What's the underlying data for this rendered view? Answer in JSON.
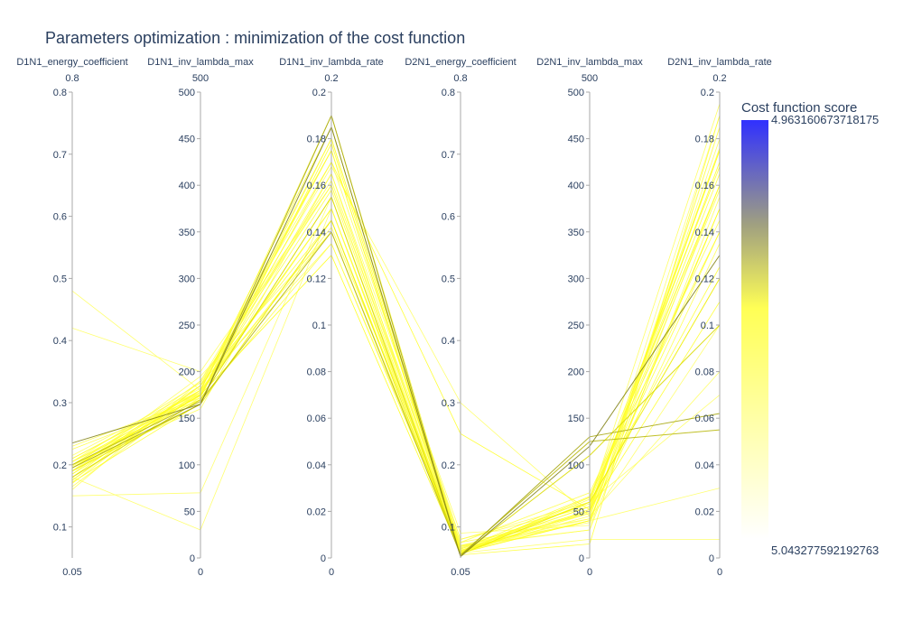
{
  "title": "Parameters optimization : minimization of the cost function",
  "chart_data": {
    "type": "parallel-coordinates",
    "title": "Parameters optimization : minimization of the cost function",
    "dimensions": [
      {
        "label": "D1N1_energy_coefficient",
        "range": [
          0.05,
          0.8
        ],
        "min_label": "0.05",
        "max_label": "0.8",
        "ticks": [
          {
            "v": 0.1,
            "t": "0.1"
          },
          {
            "v": 0.2,
            "t": "0.2"
          },
          {
            "v": 0.3,
            "t": "0.3"
          },
          {
            "v": 0.4,
            "t": "0.4"
          },
          {
            "v": 0.5,
            "t": "0.5"
          },
          {
            "v": 0.6,
            "t": "0.6"
          },
          {
            "v": 0.7,
            "t": "0.7"
          },
          {
            "v": 0.8,
            "t": "0.8"
          }
        ]
      },
      {
        "label": "D1N1_inv_lambda_max",
        "range": [
          0,
          500
        ],
        "min_label": "0",
        "max_label": "500",
        "ticks": [
          {
            "v": 0,
            "t": "0"
          },
          {
            "v": 50,
            "t": "50"
          },
          {
            "v": 100,
            "t": "100"
          },
          {
            "v": 150,
            "t": "150"
          },
          {
            "v": 200,
            "t": "200"
          },
          {
            "v": 250,
            "t": "250"
          },
          {
            "v": 300,
            "t": "300"
          },
          {
            "v": 350,
            "t": "350"
          },
          {
            "v": 400,
            "t": "400"
          },
          {
            "v": 450,
            "t": "450"
          },
          {
            "v": 500,
            "t": "500"
          }
        ]
      },
      {
        "label": "D1N1_inv_lambda_rate",
        "range": [
          0,
          0.2
        ],
        "min_label": "0",
        "max_label": "0.2",
        "ticks": [
          {
            "v": 0,
            "t": "0"
          },
          {
            "v": 0.02,
            "t": "0.02"
          },
          {
            "v": 0.04,
            "t": "0.04"
          },
          {
            "v": 0.06,
            "t": "0.06"
          },
          {
            "v": 0.08,
            "t": "0.08"
          },
          {
            "v": 0.1,
            "t": "0.1"
          },
          {
            "v": 0.12,
            "t": "0.12"
          },
          {
            "v": 0.14,
            "t": "0.14"
          },
          {
            "v": 0.16,
            "t": "0.16"
          },
          {
            "v": 0.18,
            "t": "0.18"
          },
          {
            "v": 0.2,
            "t": "0.2"
          }
        ]
      },
      {
        "label": "D2N1_energy_coefficient",
        "range": [
          0.05,
          0.8
        ],
        "min_label": "0.05",
        "max_label": "0.8",
        "ticks": [
          {
            "v": 0.1,
            "t": "0.1"
          },
          {
            "v": 0.2,
            "t": "0.2"
          },
          {
            "v": 0.3,
            "t": "0.3"
          },
          {
            "v": 0.4,
            "t": "0.4"
          },
          {
            "v": 0.5,
            "t": "0.5"
          },
          {
            "v": 0.6,
            "t": "0.6"
          },
          {
            "v": 0.7,
            "t": "0.7"
          },
          {
            "v": 0.8,
            "t": "0.8"
          }
        ]
      },
      {
        "label": "D2N1_inv_lambda_max",
        "range": [
          0,
          500
        ],
        "min_label": "0",
        "max_label": "500",
        "ticks": [
          {
            "v": 0,
            "t": "0"
          },
          {
            "v": 50,
            "t": "50"
          },
          {
            "v": 100,
            "t": "100"
          },
          {
            "v": 150,
            "t": "150"
          },
          {
            "v": 200,
            "t": "200"
          },
          {
            "v": 250,
            "t": "250"
          },
          {
            "v": 300,
            "t": "300"
          },
          {
            "v": 350,
            "t": "350"
          },
          {
            "v": 400,
            "t": "400"
          },
          {
            "v": 450,
            "t": "450"
          },
          {
            "v": 500,
            "t": "500"
          }
        ]
      },
      {
        "label": "D2N1_inv_lambda_rate",
        "range": [
          0,
          0.2
        ],
        "min_label": "0",
        "max_label": "0.2",
        "ticks": [
          {
            "v": 0,
            "t": "0"
          },
          {
            "v": 0.02,
            "t": "0.02"
          },
          {
            "v": 0.04,
            "t": "0.04"
          },
          {
            "v": 0.06,
            "t": "0.06"
          },
          {
            "v": 0.08,
            "t": "0.08"
          },
          {
            "v": 0.1,
            "t": "0.1"
          },
          {
            "v": 0.12,
            "t": "0.12"
          },
          {
            "v": 0.14,
            "t": "0.14"
          },
          {
            "v": 0.16,
            "t": "0.16"
          },
          {
            "v": 0.18,
            "t": "0.18"
          },
          {
            "v": 0.2,
            "t": "0.2"
          }
        ]
      }
    ],
    "colorbar": {
      "title": "Cost function score",
      "max_label": "4.963160673718175",
      "min_label": "5.043277592192763",
      "colorscale": [
        "#ffffff",
        "#ffff00",
        "#808080",
        "#0000ff"
      ]
    },
    "lines": [
      {
        "values": [
          0.195,
          175,
          0.13,
          0.058,
          40,
          0.15
        ],
        "score": 0.45
      },
      {
        "values": [
          0.21,
          180,
          0.14,
          0.06,
          45,
          0.16
        ],
        "score": 0.2
      },
      {
        "values": [
          0.48,
          180,
          0.15,
          0.07,
          50,
          0.17
        ],
        "score": 0.1
      },
      {
        "values": [
          0.42,
          200,
          0.16,
          0.065,
          42,
          0.19
        ],
        "score": 0.08
      },
      {
        "values": [
          0.19,
          165,
          0.145,
          0.056,
          60,
          0.12
        ],
        "score": 0.55
      },
      {
        "values": [
          0.235,
          165,
          0.185,
          0.052,
          120,
          0.13
        ],
        "score": 0.85
      },
      {
        "values": [
          0.195,
          165,
          0.19,
          0.053,
          130,
          0.062
        ],
        "score": 0.75
      },
      {
        "values": [
          0.2,
          168,
          0.14,
          0.055,
          125,
          0.055
        ],
        "score": 0.7
      },
      {
        "values": [
          0.18,
          170,
          0.155,
          0.054,
          110,
          0.1
        ],
        "score": 0.6
      },
      {
        "values": [
          0.175,
          185,
          0.175,
          0.06,
          50,
          0.14
        ],
        "score": 0.3
      },
      {
        "values": [
          0.205,
          170,
          0.135,
          0.062,
          55,
          0.165
        ],
        "score": 0.25
      },
      {
        "values": [
          0.165,
          178,
          0.15,
          0.068,
          48,
          0.175
        ],
        "score": 0.22
      },
      {
        "values": [
          0.23,
          172,
          0.18,
          0.07,
          30,
          0.155
        ],
        "score": 0.18
      },
      {
        "values": [
          0.185,
          190,
          0.17,
          0.08,
          60,
          0.195
        ],
        "score": 0.15
      },
      {
        "values": [
          0.2,
          160,
          0.165,
          0.09,
          35,
          0.185
        ],
        "score": 0.12
      },
      {
        "values": [
          0.17,
          185,
          0.16,
          0.075,
          70,
          0.145
        ],
        "score": 0.2
      },
      {
        "values": [
          0.195,
          175,
          0.17,
          0.25,
          52,
          0.11
        ],
        "score": 0.35
      },
      {
        "values": [
          0.215,
          182,
          0.168,
          0.3,
          45,
          0.08
        ],
        "score": 0.1
      },
      {
        "values": [
          0.19,
          195,
          0.14,
          0.063,
          40,
          0.03
        ],
        "score": 0.1
      },
      {
        "values": [
          0.175,
          180,
          0.175,
          0.058,
          20,
          0.008
        ],
        "score": 0.1
      },
      {
        "values": [
          0.205,
          176,
          0.15,
          0.055,
          15,
          0.19
        ],
        "score": 0.28
      },
      {
        "values": [
          0.19,
          172,
          0.19,
          0.061,
          55,
          0.17
        ],
        "score": 0.24
      },
      {
        "values": [
          0.225,
          170,
          0.155,
          0.059,
          63,
          0.16
        ],
        "score": 0.26
      },
      {
        "values": [
          0.16,
          190,
          0.16,
          0.07,
          38,
          0.18
        ],
        "score": 0.15
      },
      {
        "values": [
          0.18,
          185,
          0.145,
          0.066,
          58,
          0.125
        ],
        "score": 0.3
      },
      {
        "values": [
          0.2,
          180,
          0.18,
          0.064,
          66,
          0.14
        ],
        "score": 0.32
      },
      {
        "values": [
          0.195,
          180,
          0.185,
          0.057,
          52,
          0.175
        ],
        "score": 0.38
      },
      {
        "values": [
          0.21,
          178,
          0.158,
          0.06,
          48,
          0.15
        ],
        "score": 0.27
      },
      {
        "values": [
          0.2,
          185,
          0.135,
          0.069,
          30,
          0.185
        ],
        "score": 0.14
      },
      {
        "values": [
          0.185,
          175,
          0.175,
          0.06,
          60,
          0.16
        ],
        "score": 0.33
      },
      {
        "values": [
          0.18,
          30,
          0.15,
          0.06,
          40,
          0.1
        ],
        "score": 0.1
      },
      {
        "values": [
          0.15,
          70,
          0.155,
          0.062,
          60,
          0.07
        ],
        "score": 0.08
      },
      {
        "values": [
          0.19,
          178,
          0.142,
          0.075,
          42,
          0.135
        ],
        "score": 0.2
      },
      {
        "values": [
          0.205,
          188,
          0.162,
          0.08,
          55,
          0.158
        ],
        "score": 0.22
      },
      {
        "values": [
          0.172,
          166,
          0.178,
          0.058,
          65,
          0.168
        ],
        "score": 0.34
      },
      {
        "values": [
          0.198,
          174,
          0.165,
          0.061,
          50,
          0.176
        ],
        "score": 0.29
      }
    ]
  }
}
